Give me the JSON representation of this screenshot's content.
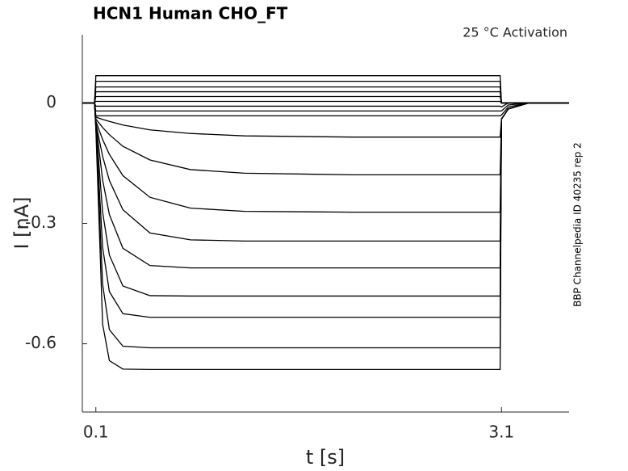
{
  "chart_data": {
    "type": "line",
    "title": "HCN1  Human  CHO_FT",
    "annotation": "25 °C  Activation",
    "side_note": "BBP Channelpedia ID 40235 rep 2",
    "xlabel": "t [s]",
    "ylabel": "I [nA]",
    "color": "#000000",
    "xlim": [
      0,
      3.6
    ],
    "ylim": [
      -0.77,
      0.17
    ],
    "xticks": [
      0.1,
      3.1
    ],
    "yticks": [
      0,
      -0.3,
      -0.6
    ],
    "x": [
      0,
      0.09,
      0.1,
      0.15,
      0.2,
      0.3,
      0.5,
      0.8,
      1.2,
      2.0,
      3.09,
      3.1,
      3.15,
      3.3,
      3.6
    ],
    "series": [
      {
        "values": [
          0,
          0,
          0.068,
          0.068,
          0.068,
          0.068,
          0.068,
          0.068,
          0.068,
          0.068,
          0.068,
          0,
          0,
          0,
          0
        ]
      },
      {
        "values": [
          0,
          0,
          0.054,
          0.054,
          0.054,
          0.054,
          0.054,
          0.054,
          0.054,
          0.054,
          0.054,
          0,
          0,
          0,
          0
        ]
      },
      {
        "values": [
          0,
          0,
          0.04,
          0.04,
          0.04,
          0.04,
          0.04,
          0.04,
          0.04,
          0.04,
          0.04,
          0,
          0,
          0,
          0
        ]
      },
      {
        "values": [
          0,
          0,
          0.028,
          0.028,
          0.028,
          0.028,
          0.028,
          0.028,
          0.028,
          0.028,
          0.028,
          0,
          0,
          0,
          0
        ]
      },
      {
        "values": [
          0,
          0,
          0.016,
          0.016,
          0.016,
          0.016,
          0.016,
          0.016,
          0.016,
          0.016,
          0.016,
          0,
          0,
          0,
          0
        ]
      },
      {
        "values": [
          0,
          0,
          0.004,
          0.004,
          0.004,
          0.004,
          0.004,
          0.004,
          0.004,
          0.004,
          0.004,
          0,
          0,
          0,
          0
        ]
      },
      {
        "values": [
          0,
          0,
          -0.008,
          -0.008,
          -0.008,
          -0.008,
          -0.008,
          -0.008,
          -0.008,
          -0.008,
          -0.008,
          -0.01,
          0,
          0,
          0
        ]
      },
      {
        "values": [
          0,
          0,
          -0.02,
          -0.02,
          -0.02,
          -0.02,
          -0.02,
          -0.02,
          -0.02,
          -0.02,
          -0.02,
          -0.02,
          -0.005,
          0,
          0
        ]
      },
      {
        "values": [
          0,
          0,
          -0.032,
          -0.032,
          -0.032,
          -0.032,
          -0.032,
          -0.032,
          -0.032,
          -0.032,
          -0.032,
          -0.03,
          -0.01,
          0,
          0
        ]
      },
      {
        "values": [
          0,
          0,
          -0.035,
          -0.041,
          -0.046,
          -0.055,
          -0.067,
          -0.076,
          -0.082,
          -0.085,
          -0.085,
          -0.04,
          -0.015,
          0,
          0
        ]
      },
      {
        "values": [
          0,
          0,
          -0.04,
          -0.061,
          -0.079,
          -0.108,
          -0.142,
          -0.166,
          -0.175,
          -0.179,
          -0.179,
          -0.04,
          -0.015,
          0,
          0
        ]
      },
      {
        "values": [
          0,
          0,
          -0.045,
          -0.091,
          -0.128,
          -0.181,
          -0.235,
          -0.262,
          -0.27,
          -0.272,
          -0.272,
          -0.04,
          -0.015,
          0,
          0
        ]
      },
      {
        "values": [
          0,
          0,
          -0.05,
          -0.133,
          -0.193,
          -0.266,
          -0.324,
          -0.341,
          -0.344,
          -0.344,
          -0.344,
          -0.04,
          -0.015,
          0,
          0
        ]
      },
      {
        "values": [
          0,
          0,
          -0.05,
          -0.192,
          -0.278,
          -0.362,
          -0.405,
          -0.411,
          -0.411,
          -0.411,
          -0.411,
          -0.04,
          -0.015,
          0,
          0
        ]
      },
      {
        "values": [
          0,
          0,
          -0.055,
          -0.272,
          -0.379,
          -0.456,
          -0.48,
          -0.481,
          -0.481,
          -0.481,
          -0.481,
          -0.04,
          -0.015,
          0,
          0
        ]
      },
      {
        "values": [
          0,
          0,
          -0.06,
          -0.36,
          -0.47,
          -0.525,
          -0.534,
          -0.534,
          -0.534,
          -0.534,
          -0.534,
          -0.04,
          -0.015,
          0,
          0
        ]
      },
      {
        "values": [
          0,
          0,
          -0.06,
          -0.452,
          -0.565,
          -0.606,
          -0.61,
          -0.61,
          -0.61,
          -0.61,
          -0.61,
          -0.04,
          -0.015,
          0,
          0
        ]
      },
      {
        "values": [
          0,
          0,
          -0.065,
          -0.551,
          -0.642,
          -0.663,
          -0.664,
          -0.664,
          -0.664,
          -0.664,
          -0.664,
          -0.04,
          -0.015,
          0,
          0
        ]
      }
    ]
  }
}
